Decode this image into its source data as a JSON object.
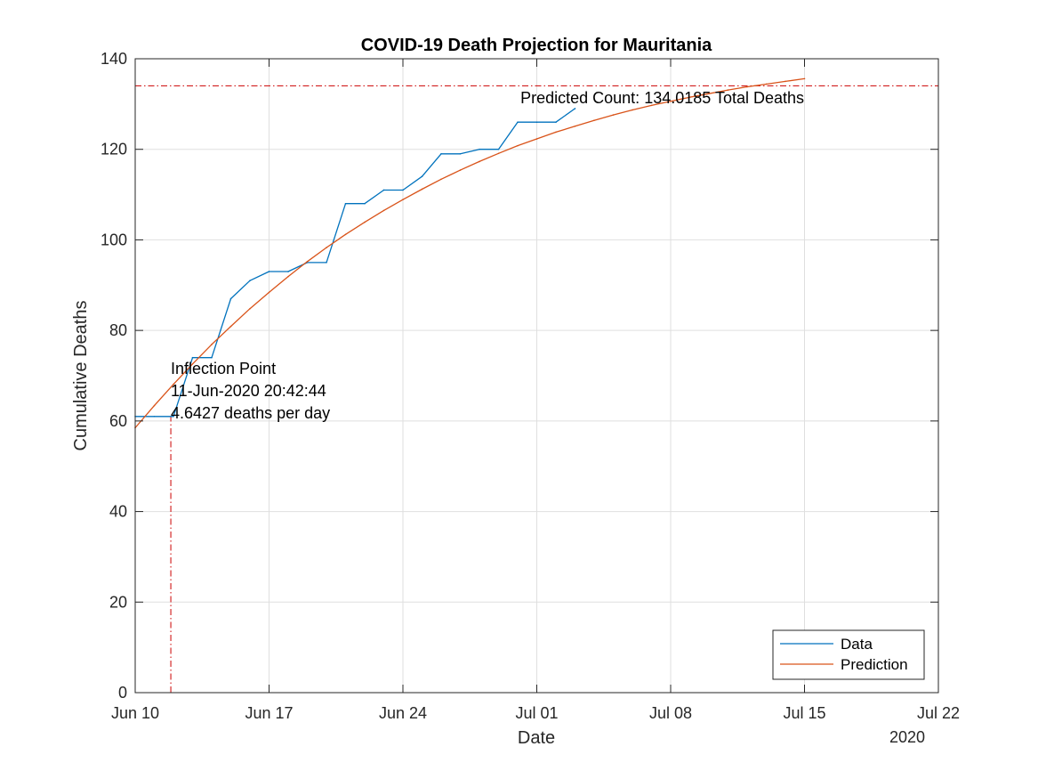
{
  "chart_data": {
    "type": "line",
    "title": "COVID-19 Death Projection for Mauritania",
    "xlabel": "Date",
    "ylabel": "Cumulative Deaths",
    "year_label": "2020",
    "x_unit": "days since Jun 10, 2020",
    "xlim": [
      0,
      42
    ],
    "ylim": [
      0,
      140
    ],
    "grid": true,
    "x_ticks": [
      {
        "value": 0,
        "label": "Jun 10"
      },
      {
        "value": 7,
        "label": "Jun 17"
      },
      {
        "value": 14,
        "label": "Jun 24"
      },
      {
        "value": 21,
        "label": "Jul 01"
      },
      {
        "value": 28,
        "label": "Jul 08"
      },
      {
        "value": 35,
        "label": "Jul 15"
      },
      {
        "value": 42,
        "label": "Jul 22"
      }
    ],
    "y_ticks": [
      0,
      20,
      40,
      60,
      80,
      100,
      120,
      140
    ],
    "series": [
      {
        "name": "Data",
        "color": "#0072BD",
        "x": [
          0,
          1,
          2,
          3,
          4,
          5,
          6,
          7,
          8,
          9,
          10,
          11,
          12,
          13,
          14,
          15,
          16,
          17,
          18,
          19,
          20,
          21,
          22,
          23
        ],
        "values": [
          61,
          61,
          61,
          74,
          74,
          87,
          91,
          93,
          93,
          95,
          95,
          108,
          108,
          111,
          111,
          114,
          119,
          119,
          120,
          120,
          126,
          126,
          126,
          129
        ]
      },
      {
        "name": "Prediction",
        "color": "#D95319",
        "x": [
          0,
          1,
          2,
          3,
          4,
          5,
          6,
          7,
          8,
          9,
          10,
          11,
          12,
          13,
          14,
          15,
          16,
          17,
          18,
          19,
          20,
          21,
          22,
          23,
          24,
          25,
          26,
          27,
          28,
          29,
          30,
          31,
          32,
          33,
          34,
          35
        ],
        "values": [
          58.5,
          63.4,
          68.1,
          72.6,
          76.9,
          80.9,
          84.8,
          88.4,
          91.9,
          95.2,
          98.3,
          101.2,
          103.9,
          106.5,
          108.9,
          111.2,
          113.4,
          115.4,
          117.3,
          119.1,
          120.8,
          122.3,
          123.8,
          125.1,
          126.4,
          127.6,
          128.7,
          129.7,
          130.6,
          131.5,
          132.3,
          133.1,
          133.8,
          134.4,
          135.0,
          135.6
        ]
      }
    ],
    "reference_lines": {
      "predicted_total": 134.0185,
      "inflection_x": 1.863,
      "color": "#CC0000"
    },
    "annotations": {
      "predicted_count": "Predicted Count: 134.0185 Total Deaths",
      "inflection": [
        "Inflection Point",
        "11-Jun-2020 20:42:44",
        "4.6427 deaths per day"
      ]
    },
    "legend": {
      "position": "bottom-right",
      "entries": [
        "Data",
        "Prediction"
      ]
    }
  }
}
